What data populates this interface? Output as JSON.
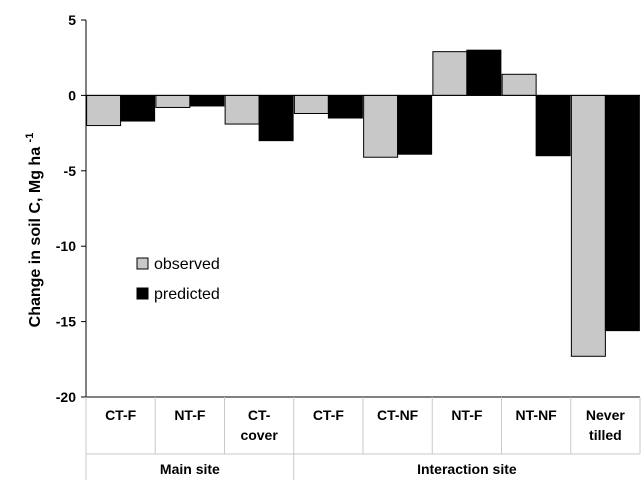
{
  "chart_data": {
    "type": "bar",
    "ylabel": "Change in soil C, Mg ha",
    "ylabel_superscript": "-1",
    "ylim": [
      -20,
      5
    ],
    "yticks": [
      5,
      0,
      -5,
      -10,
      -15,
      -20
    ],
    "categories": [
      [
        "CT-F"
      ],
      [
        "NT-F"
      ],
      [
        "CT-",
        "cover"
      ],
      [
        "CT-F"
      ],
      [
        "CT-NF"
      ],
      [
        "NT-F"
      ],
      [
        "NT-NF"
      ],
      [
        "Never",
        "tilled"
      ]
    ],
    "groups": [
      {
        "label": "Main site",
        "span": [
          0,
          2
        ]
      },
      {
        "label": "Interaction site",
        "span": [
          3,
          7
        ]
      }
    ],
    "series": [
      {
        "name": "observed",
        "color": "#c8c8c8",
        "values": [
          -2.0,
          -0.8,
          -1.9,
          -1.2,
          -4.1,
          2.9,
          1.4,
          -17.3
        ]
      },
      {
        "name": "predicted",
        "color": "#000000",
        "values": [
          -1.7,
          -0.7,
          -3.0,
          -1.5,
          -3.9,
          3.0,
          -4.0,
          -15.6
        ]
      }
    ],
    "legend_position": "middle-left",
    "grid": false
  }
}
